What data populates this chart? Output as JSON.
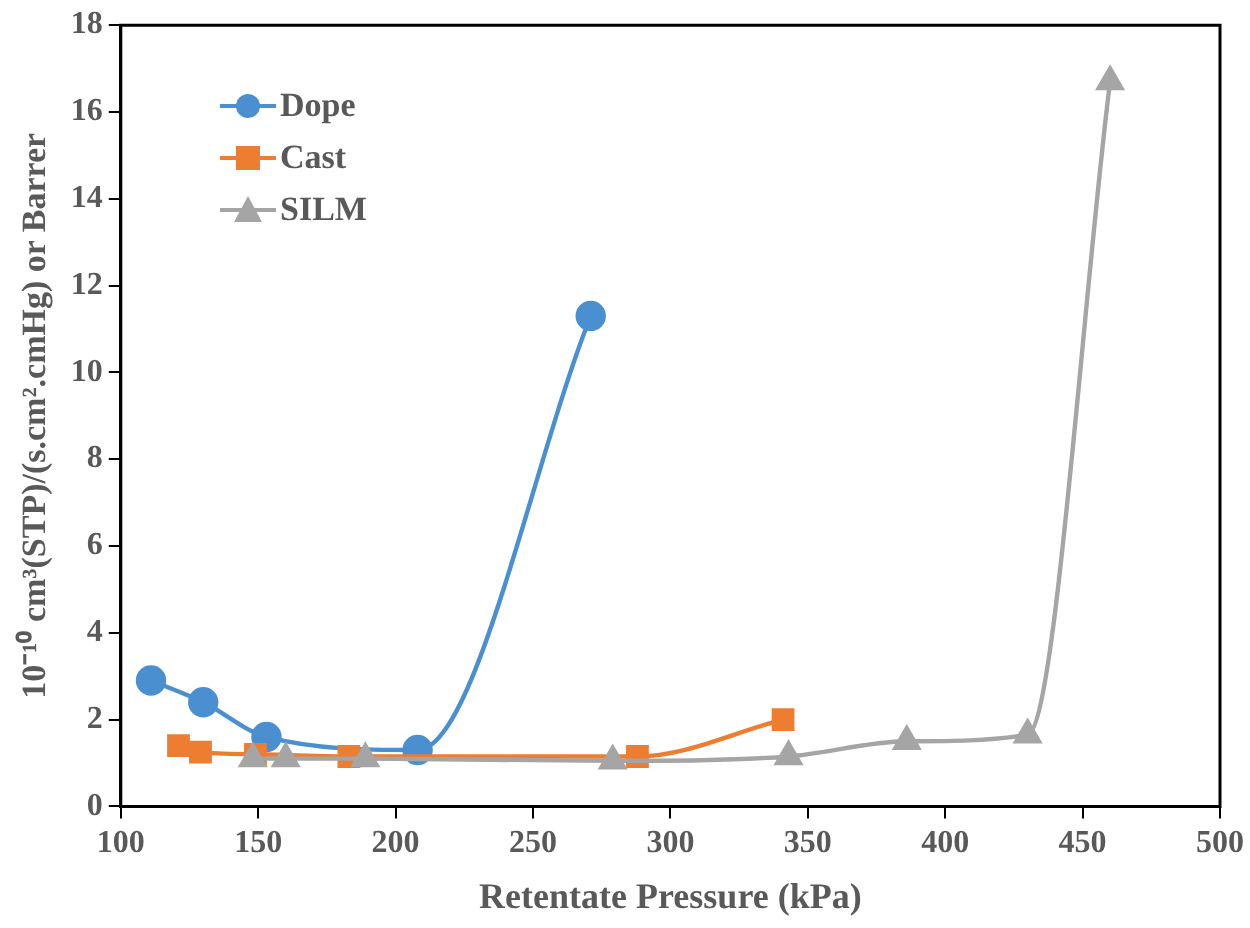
{
  "chart_data": {
    "type": "line",
    "xlabel": "Retentate Pressure (kPa)",
    "ylabel": "10⁻¹⁰ cm³(STP)/(s.cm².cmHg) or Barrer",
    "xlim": [
      100,
      500
    ],
    "xticks": [
      100,
      150,
      200,
      250,
      300,
      350,
      400,
      450,
      500
    ],
    "ylim": [
      0,
      18
    ],
    "yticks": [
      0,
      2,
      4,
      6,
      8,
      10,
      12,
      14,
      16,
      18
    ],
    "grid": false,
    "legend": "top left",
    "series": [
      {
        "name": "Dope",
        "color": "#4a8fd0",
        "marker": "circle",
        "x": [
          111,
          130,
          153,
          208,
          271
        ],
        "values": [
          2.9,
          2.4,
          1.6,
          1.3,
          11.3
        ]
      },
      {
        "name": "Cast",
        "color": "#ed7d31",
        "marker": "square",
        "x": [
          121,
          129,
          149,
          183,
          288,
          341
        ],
        "values": [
          1.4,
          1.25,
          1.2,
          1.15,
          1.15,
          2.0
        ]
      },
      {
        "name": "SILM",
        "color": "#a5a5a5",
        "marker": "triangle",
        "x": [
          148,
          160,
          189,
          279,
          343,
          386,
          430,
          460
        ],
        "values": [
          1.1,
          1.1,
          1.1,
          1.05,
          1.15,
          1.5,
          1.65,
          16.7
        ]
      }
    ]
  }
}
